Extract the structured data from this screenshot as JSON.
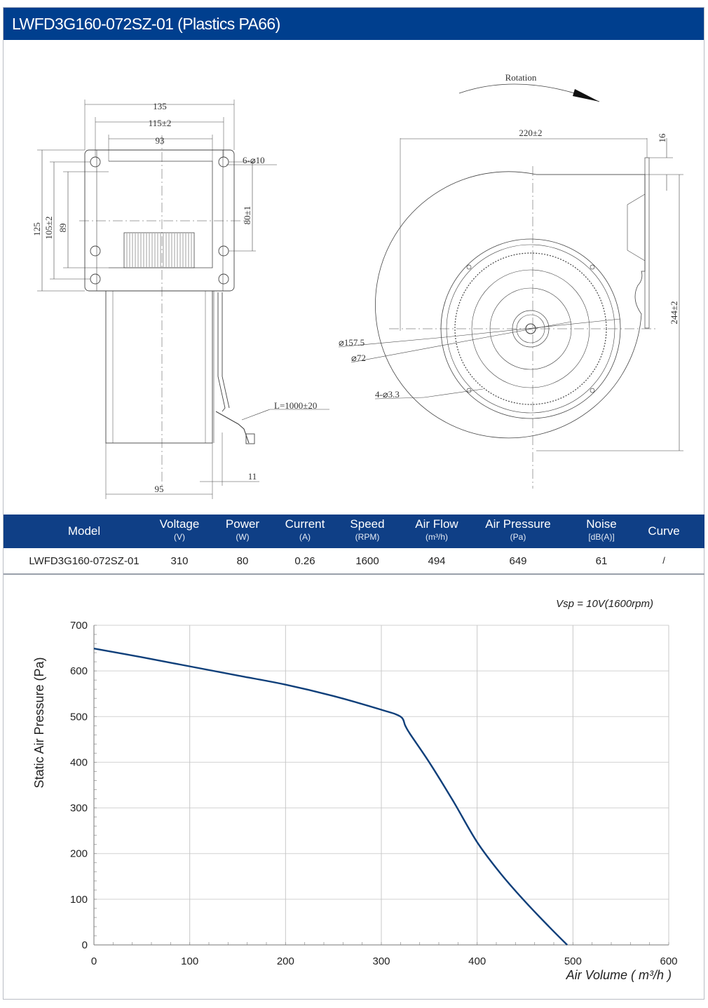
{
  "header": {
    "title": "LWFD3G160-072SZ-01 (Plastics PA66)"
  },
  "drawing": {
    "side_view": {
      "dim_135": "135",
      "dim_115": "115±2",
      "dim_93": "93",
      "dim_holes": "6-⌀10",
      "dim_125": "125",
      "dim_105": "105±2",
      "dim_89": "89",
      "dim_80": "80±1",
      "dim_cable": "L=1000±20",
      "dim_95": "95",
      "dim_11": "11"
    },
    "front_view": {
      "rotation": "Rotation",
      "dim_220": "220±2",
      "dim_16": "16",
      "dim_244": "244±2",
      "dim_157": "⌀157.5",
      "dim_72": "⌀72",
      "dim_33": "4-⌀3.3"
    }
  },
  "spec_table": {
    "headers": [
      {
        "label": "Model",
        "unit": ""
      },
      {
        "label": "Voltage",
        "unit": "(V)"
      },
      {
        "label": "Power",
        "unit": "(W)"
      },
      {
        "label": "Current",
        "unit": "(A)"
      },
      {
        "label": "Speed",
        "unit": "(RPM)"
      },
      {
        "label": "Air Flow",
        "unit": "(m³/h)"
      },
      {
        "label": "Air Pressure",
        "unit": "(Pa)"
      },
      {
        "label": "Noise",
        "unit": "[dB(A)]"
      },
      {
        "label": "Curve",
        "unit": ""
      }
    ],
    "row": [
      "LWFD3G160-072SZ-01",
      "310",
      "80",
      "0.26",
      "1600",
      "494",
      "649",
      "61",
      "/"
    ]
  },
  "chart_data": {
    "type": "line",
    "xlabel": "Air Volume ( m³/h )",
    "ylabel": "Static Air Pressure  (Pa)",
    "annotation": "Vsp = 10V(1600rpm)",
    "xlim": [
      0,
      600
    ],
    "ylim": [
      0,
      700
    ],
    "xticks": [
      "0",
      "100",
      "200",
      "300",
      "400",
      "500",
      "600"
    ],
    "yticks": [
      "0",
      "100",
      "200",
      "300",
      "400",
      "500",
      "600",
      "700"
    ],
    "grid": true,
    "color": "#0f3f7a",
    "series": [
      {
        "x": [
          0,
          50,
          100,
          150,
          200,
          250,
          300,
          320,
          325,
          330,
          350,
          375,
          400,
          425,
          450,
          475,
          494
        ],
        "y": [
          649,
          630,
          610,
          590,
          570,
          545,
          515,
          500,
          480,
          462,
          400,
          315,
          225,
          155,
          95,
          40,
          0
        ]
      }
    ]
  }
}
